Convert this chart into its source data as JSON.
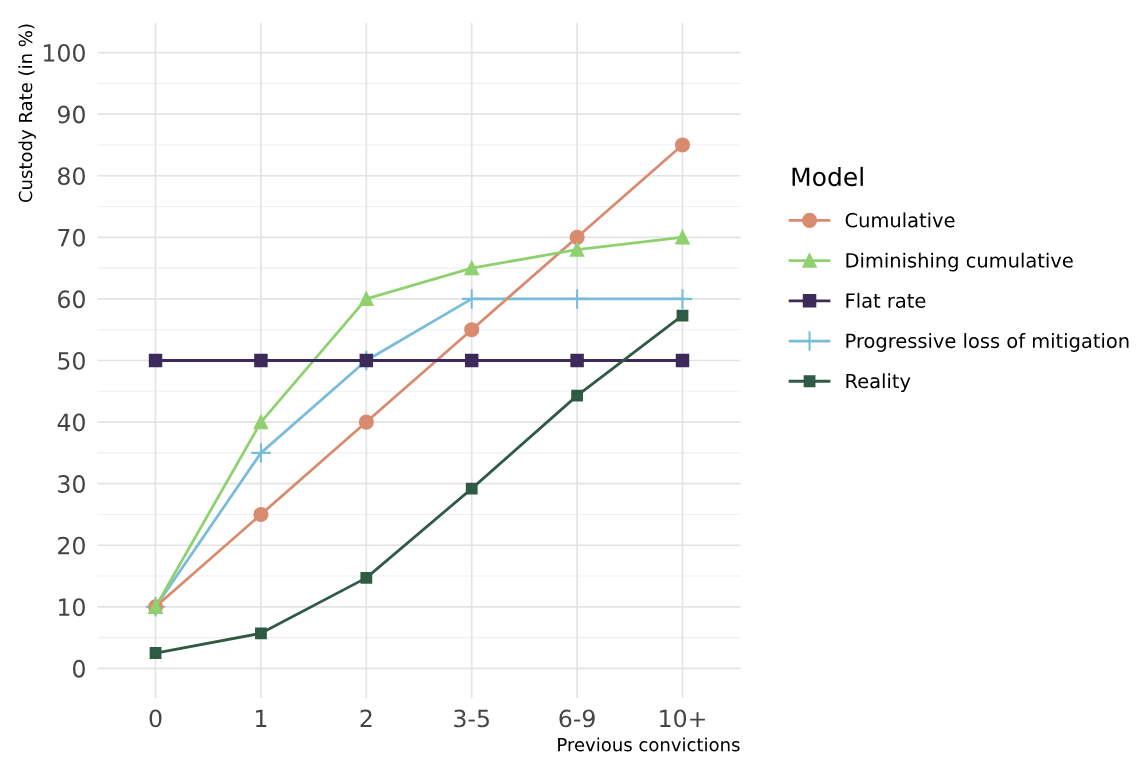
{
  "chart_data": {
    "type": "line",
    "categories": [
      "0",
      "1",
      "2",
      "3-5",
      "6-9",
      "10+"
    ],
    "xlabel": "Previous convictions",
    "ylabel": "Custody Rate (in %)",
    "legend_title": "Model",
    "series": [
      {
        "name": "Cumulative",
        "color": "#d98b6f",
        "marker": "circle",
        "values": [
          10,
          25,
          40,
          55,
          70,
          85
        ]
      },
      {
        "name": "Diminishing cumulative",
        "color": "#8fd16f",
        "marker": "triangle",
        "values": [
          10,
          40,
          60,
          65,
          68,
          70
        ]
      },
      {
        "name": "Flat rate",
        "color": "#3c2a5a",
        "marker": "square",
        "values": [
          50,
          50,
          50,
          50,
          50,
          50
        ]
      },
      {
        "name": "Progressive loss of mitigation",
        "color": "#7bbcd8",
        "marker": "cross",
        "values": [
          10,
          35,
          50,
          60,
          60,
          60
        ]
      },
      {
        "name": "Reality",
        "color": "#2f5a44",
        "marker": "square",
        "values": [
          2.5,
          5.7,
          14.7,
          29.2,
          44.3,
          57.3
        ]
      }
    ],
    "ylim": [
      -4.8,
      104.8
    ],
    "yticks": [
      0,
      10,
      20,
      30,
      40,
      50,
      60,
      70,
      80,
      90,
      100
    ],
    "grid": true,
    "legend": "right"
  }
}
